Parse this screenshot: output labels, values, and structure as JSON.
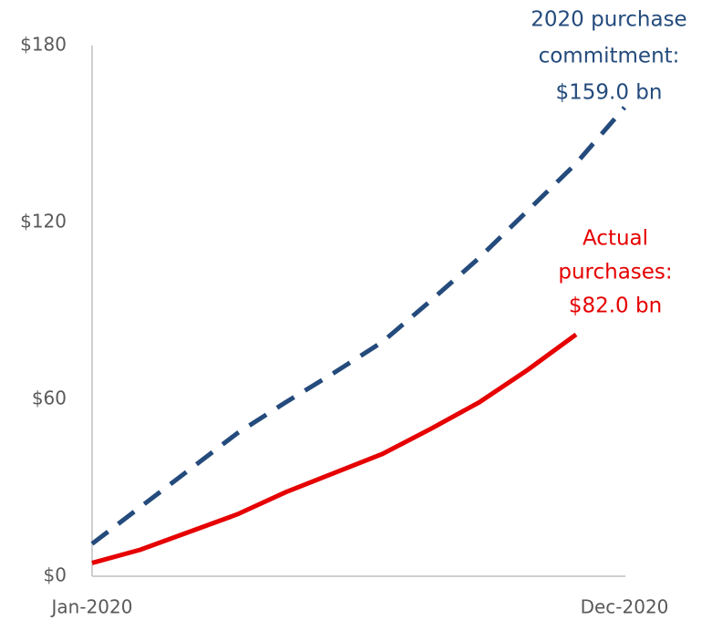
{
  "chart_data": {
    "type": "line",
    "categories": [
      "Jan-2020",
      null,
      null,
      null,
      null,
      null,
      null,
      null,
      null,
      null,
      null,
      "Dec-2020"
    ],
    "series": [
      {
        "name": "2020 purchase commitment",
        "color": "#244b7c",
        "dashed": true,
        "values": [
          11,
          23.5,
          36,
          48.5,
          59,
          69,
          79.5,
          93.5,
          108,
          124,
          140,
          159
        ]
      },
      {
        "name": "Actual purchases",
        "color": "#e60000",
        "dashed": false,
        "values": [
          4.5,
          9,
          15,
          21,
          28.5,
          35,
          41.5,
          50,
          59,
          70,
          82,
          null
        ]
      }
    ],
    "ylim": [
      0,
      180
    ],
    "yticks": [
      {
        "value": 0,
        "label": "$0"
      },
      {
        "value": 60,
        "label": "$60"
      },
      {
        "value": 120,
        "label": "$120"
      },
      {
        "value": 180,
        "label": "$180"
      }
    ],
    "grid": false,
    "annotations": [
      {
        "lines": [
          "2020 purchase",
          "commitment:",
          "$159.0 bn"
        ],
        "color": "#244b7c"
      },
      {
        "lines": [
          "Actual",
          "purchases:",
          "$82.0 bn"
        ],
        "color": "#e60000"
      }
    ]
  }
}
